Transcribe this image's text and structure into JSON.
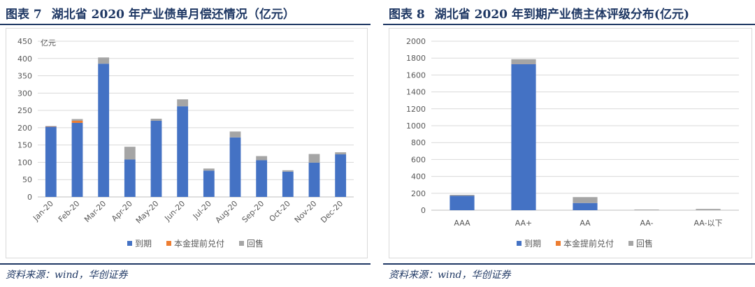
{
  "left": {
    "label": "图表 7",
    "title": "湖北省 2020 年产业债单月偿还情况（亿元）",
    "source": "资料来源：wind，华创证券"
  },
  "right": {
    "label": "图表 8",
    "title": "湖北省 2020 年到期产业债主体评级分布(亿元)",
    "source": "资料来源：wind，华创证券"
  },
  "colors": {
    "maturity": "#4472c4",
    "early": "#ed7d31",
    "putback": "#a5a5a5",
    "grid": "#d9d9d9",
    "axis": "#bfbfbf",
    "title": "#1f3864"
  },
  "chart_data": [
    {
      "type": "bar",
      "stacked": true,
      "unit_label": "亿元",
      "categories": [
        "Jan-20",
        "Feb-20",
        "Mar-20",
        "Apr-20",
        "May-20",
        "Jun-20",
        "Jul-20",
        "Aug-20",
        "Sep-20",
        "Oct-20",
        "Nov-20",
        "Dec-20"
      ],
      "series": [
        {
          "name": "到期",
          "values": [
            203,
            214,
            385,
            108,
            220,
            262,
            76,
            172,
            106,
            73,
            99,
            123
          ]
        },
        {
          "name": "本金提前兑付",
          "values": [
            1,
            6,
            0,
            0,
            0,
            0,
            0,
            0,
            0,
            0,
            0,
            0
          ]
        },
        {
          "name": "回售",
          "values": [
            1,
            5,
            18,
            37,
            6,
            20,
            6,
            17,
            12,
            4,
            25,
            6
          ]
        }
      ],
      "ylim": [
        0,
        450
      ],
      "yticks": [
        0,
        50,
        100,
        150,
        200,
        250,
        300,
        350,
        400,
        450
      ],
      "grid": true,
      "legend_position": "bottom"
    },
    {
      "type": "bar",
      "stacked": true,
      "categories": [
        "AAA",
        "AA+",
        "AA",
        "AA-",
        "AA-以下"
      ],
      "series": [
        {
          "name": "到期",
          "values": [
            170,
            1730,
            85,
            0,
            0
          ]
        },
        {
          "name": "本金提前兑付",
          "values": [
            0,
            2,
            0,
            0,
            0
          ]
        },
        {
          "name": "回售",
          "values": [
            12,
            55,
            70,
            8,
            15
          ]
        }
      ],
      "ylim": [
        0,
        2000
      ],
      "yticks": [
        0,
        200,
        400,
        600,
        800,
        1000,
        1200,
        1400,
        1600,
        1800,
        2000
      ],
      "grid": true,
      "legend_position": "bottom"
    }
  ]
}
